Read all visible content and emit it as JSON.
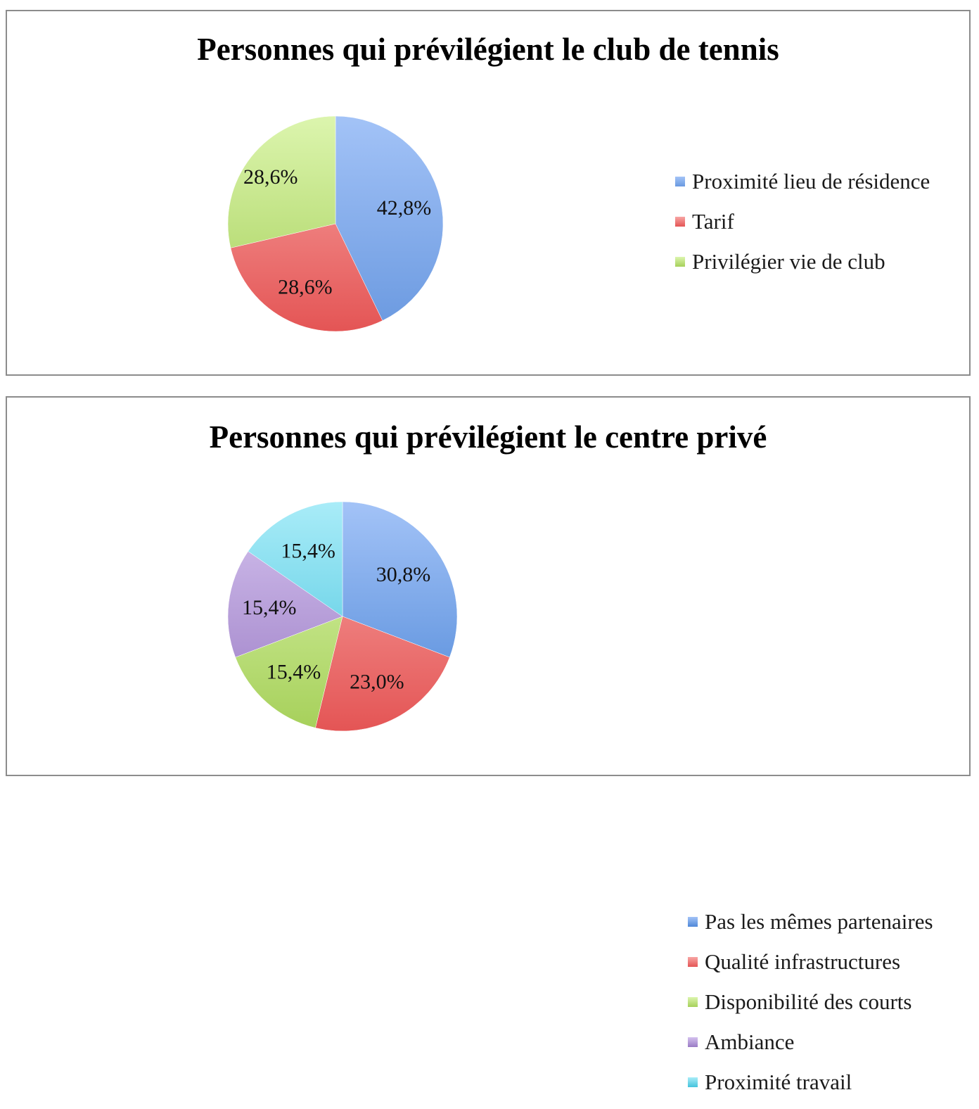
{
  "chart_data": [
    {
      "type": "pie",
      "title": "Personnes qui prévilégient le club de tennis",
      "slices": [
        {
          "label": "Proximité lieu de résidence",
          "value": 42.8,
          "value_label": "42,8%",
          "color": "#6a99e0",
          "color_light": "#a3c3f7"
        },
        {
          "label": "Tarif",
          "value": 28.6,
          "value_label": "28,6%",
          "color": "#e45555",
          "color_light": "#f8a6a4"
        },
        {
          "label": "Privilégier vie de club",
          "value": 28.6,
          "value_label": "28,6%",
          "color": "#a6d05a",
          "color_light": "#dcf5ae"
        }
      ],
      "legend_position": "right"
    },
    {
      "type": "pie",
      "title": "Personnes qui prévilégient le centre privé",
      "slices": [
        {
          "label": "Pas les mêmes partenaires",
          "value": 30.8,
          "value_label": "30,8%",
          "color": "#4f88d8",
          "color_light": "#a3c3f7"
        },
        {
          "label": "Qualité infrastructures",
          "value": 23.0,
          "value_label": "23,0%",
          "color": "#e45555",
          "color_light": "#f8a6a4"
        },
        {
          "label": "Disponibilité des courts",
          "value": 15.4,
          "value_label": "15,4%",
          "color": "#a6d05a",
          "color_light": "#dcf5ae"
        },
        {
          "label": "Ambiance",
          "value": 15.4,
          "value_label": "15,4%",
          "color": "#9a7bc4",
          "color_light": "#d4c2ee"
        },
        {
          "label": "Proximité travail",
          "value": 15.4,
          "value_label": "15,4%",
          "color": "#44c2dc",
          "color_light": "#a9ecf8"
        }
      ],
      "legend_position": "right"
    }
  ]
}
